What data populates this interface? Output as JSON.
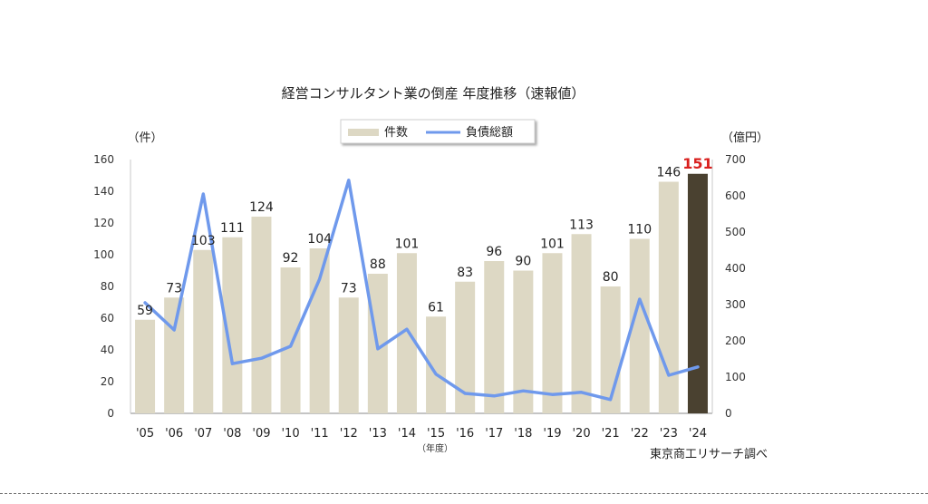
{
  "chart_data": {
    "type": "bar+line",
    "title": "経営コンサルタント業の倒産 年度推移（速報値）",
    "categories": [
      "'05",
      "'06",
      "'07",
      "'08",
      "'09",
      "'10",
      "'11",
      "'12",
      "'13",
      "'14",
      "'15",
      "'16",
      "'17",
      "'18",
      "'19",
      "'20",
      "'21",
      "'22",
      "'23",
      "'24"
    ],
    "series": [
      {
        "name": "件数",
        "type": "bar",
        "axis": "left",
        "values": [
          59,
          73,
          103,
          111,
          124,
          92,
          104,
          73,
          88,
          101,
          61,
          83,
          96,
          90,
          101,
          113,
          80,
          110,
          146,
          151
        ],
        "data_labels": [
          "59",
          "73",
          "103",
          "111",
          "124",
          "92",
          "104",
          "73",
          "88",
          "101",
          "61",
          "83",
          "96",
          "90",
          "101",
          "113",
          "80",
          "110",
          "146",
          "151"
        ],
        "color": "#ddd8c4",
        "highlight_color": "#4a4130",
        "highlight_index": 19,
        "highlight_label_color": "#d9201e"
      },
      {
        "name": "負債総額",
        "type": "line",
        "axis": "right",
        "values": [
          305,
          230,
          605,
          137,
          152,
          185,
          370,
          643,
          178,
          232,
          108,
          55,
          48,
          62,
          52,
          58,
          38,
          315,
          105,
          128
        ],
        "color": "#6f99ec"
      }
    ],
    "left_axis": {
      "unit_label": "（件）",
      "min": 0,
      "max": 160,
      "ticks": [
        "0",
        "20",
        "40",
        "60",
        "80",
        "100",
        "120",
        "140",
        "160"
      ]
    },
    "right_axis": {
      "unit_label": "（億円）",
      "min": 0,
      "max": 700,
      "ticks": [
        "0",
        "100",
        "200",
        "300",
        "400",
        "500",
        "600",
        "700"
      ]
    },
    "x_unit_label": "（年度）",
    "source": "東京商工リサーチ調べ",
    "legend_position": "top-center",
    "grid": false
  }
}
